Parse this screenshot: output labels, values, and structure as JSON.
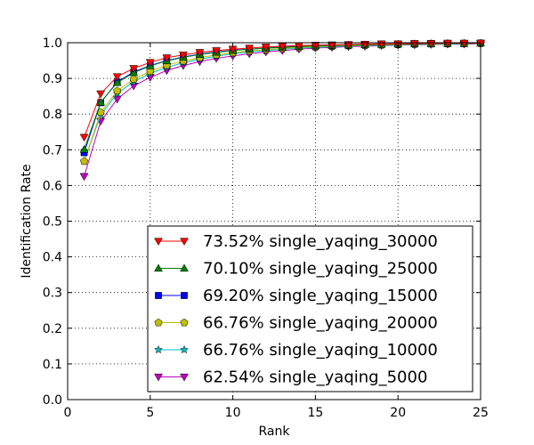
{
  "chart_data": {
    "type": "line",
    "title": "",
    "xlabel": "Rank",
    "ylabel": "Identification Rate",
    "xlim": [
      0,
      25
    ],
    "ylim": [
      0.0,
      1.0
    ],
    "xticks": [
      0,
      5,
      10,
      15,
      20,
      25
    ],
    "xtick_labels": [
      "0",
      "5",
      "10",
      "15",
      "20",
      "25"
    ],
    "yticks": [
      0.0,
      0.1,
      0.2,
      0.3,
      0.4,
      0.5,
      0.6,
      0.7,
      0.8,
      0.9,
      1.0
    ],
    "ytick_labels": [
      "0.0",
      "0.1",
      "0.2",
      "0.3",
      "0.4",
      "0.5",
      "0.6",
      "0.7",
      "0.8",
      "0.9",
      "1.0"
    ],
    "grid": true,
    "legend_position": "bottom-right",
    "x": [
      1,
      2,
      3,
      4,
      5,
      6,
      7,
      8,
      9,
      10,
      11,
      12,
      13,
      14,
      15,
      16,
      17,
      18,
      19,
      20,
      21,
      22,
      23,
      24,
      25
    ],
    "series": [
      {
        "name": "73.52% single_yaqing_30000",
        "color": "#ff0000",
        "marker": "triangle-down",
        "values": [
          0.7352,
          0.857,
          0.905,
          0.928,
          0.945,
          0.958,
          0.966,
          0.973,
          0.978,
          0.982,
          0.985,
          0.988,
          0.99,
          0.992,
          0.993,
          0.994,
          0.995,
          0.996,
          0.997,
          0.997,
          0.998,
          0.998,
          0.999,
          0.999,
          0.999
        ]
      },
      {
        "name": "70.10% single_yaqing_25000",
        "color": "#008000",
        "marker": "triangle-up",
        "values": [
          0.701,
          0.833,
          0.888,
          0.916,
          0.935,
          0.949,
          0.959,
          0.967,
          0.973,
          0.978,
          0.982,
          0.985,
          0.987,
          0.989,
          0.991,
          0.992,
          0.993,
          0.994,
          0.995,
          0.996,
          0.997,
          0.997,
          0.998,
          0.998,
          0.999
        ]
      },
      {
        "name": "69.20% single_yaqing_15000",
        "color": "#0000ff",
        "marker": "square",
        "values": [
          0.692,
          0.832,
          0.89,
          0.918,
          0.936,
          0.95,
          0.96,
          0.968,
          0.974,
          0.979,
          0.982,
          0.985,
          0.988,
          0.99,
          0.991,
          0.993,
          0.994,
          0.995,
          0.996,
          0.996,
          0.997,
          0.998,
          0.998,
          0.998,
          0.999
        ]
      },
      {
        "name": "66.76% single_yaqing_20000",
        "color": "#bfbf00",
        "marker": "pentagon",
        "values": [
          0.6676,
          0.805,
          0.865,
          0.898,
          0.92,
          0.937,
          0.949,
          0.958,
          0.966,
          0.972,
          0.977,
          0.981,
          0.984,
          0.987,
          0.989,
          0.991,
          0.992,
          0.993,
          0.994,
          0.995,
          0.996,
          0.997,
          0.997,
          0.998,
          0.998
        ]
      },
      {
        "name": "66.76% single_yaqing_10000",
        "color": "#00bfbf",
        "marker": "star",
        "values": [
          0.6676,
          0.798,
          0.858,
          0.891,
          0.914,
          0.931,
          0.944,
          0.954,
          0.962,
          0.969,
          0.974,
          0.978,
          0.982,
          0.985,
          0.987,
          0.989,
          0.991,
          0.992,
          0.993,
          0.994,
          0.995,
          0.996,
          0.997,
          0.997,
          0.998
        ]
      },
      {
        "name": "62.54% single_yaqing_5000",
        "color": "#bf00bf",
        "marker": "triangle-down",
        "values": [
          0.6254,
          0.78,
          0.842,
          0.879,
          0.903,
          0.922,
          0.936,
          0.947,
          0.956,
          0.963,
          0.969,
          0.974,
          0.978,
          0.982,
          0.985,
          0.987,
          0.989,
          0.99,
          0.992,
          0.993,
          0.994,
          0.995,
          0.996,
          0.996,
          0.997
        ]
      }
    ]
  }
}
